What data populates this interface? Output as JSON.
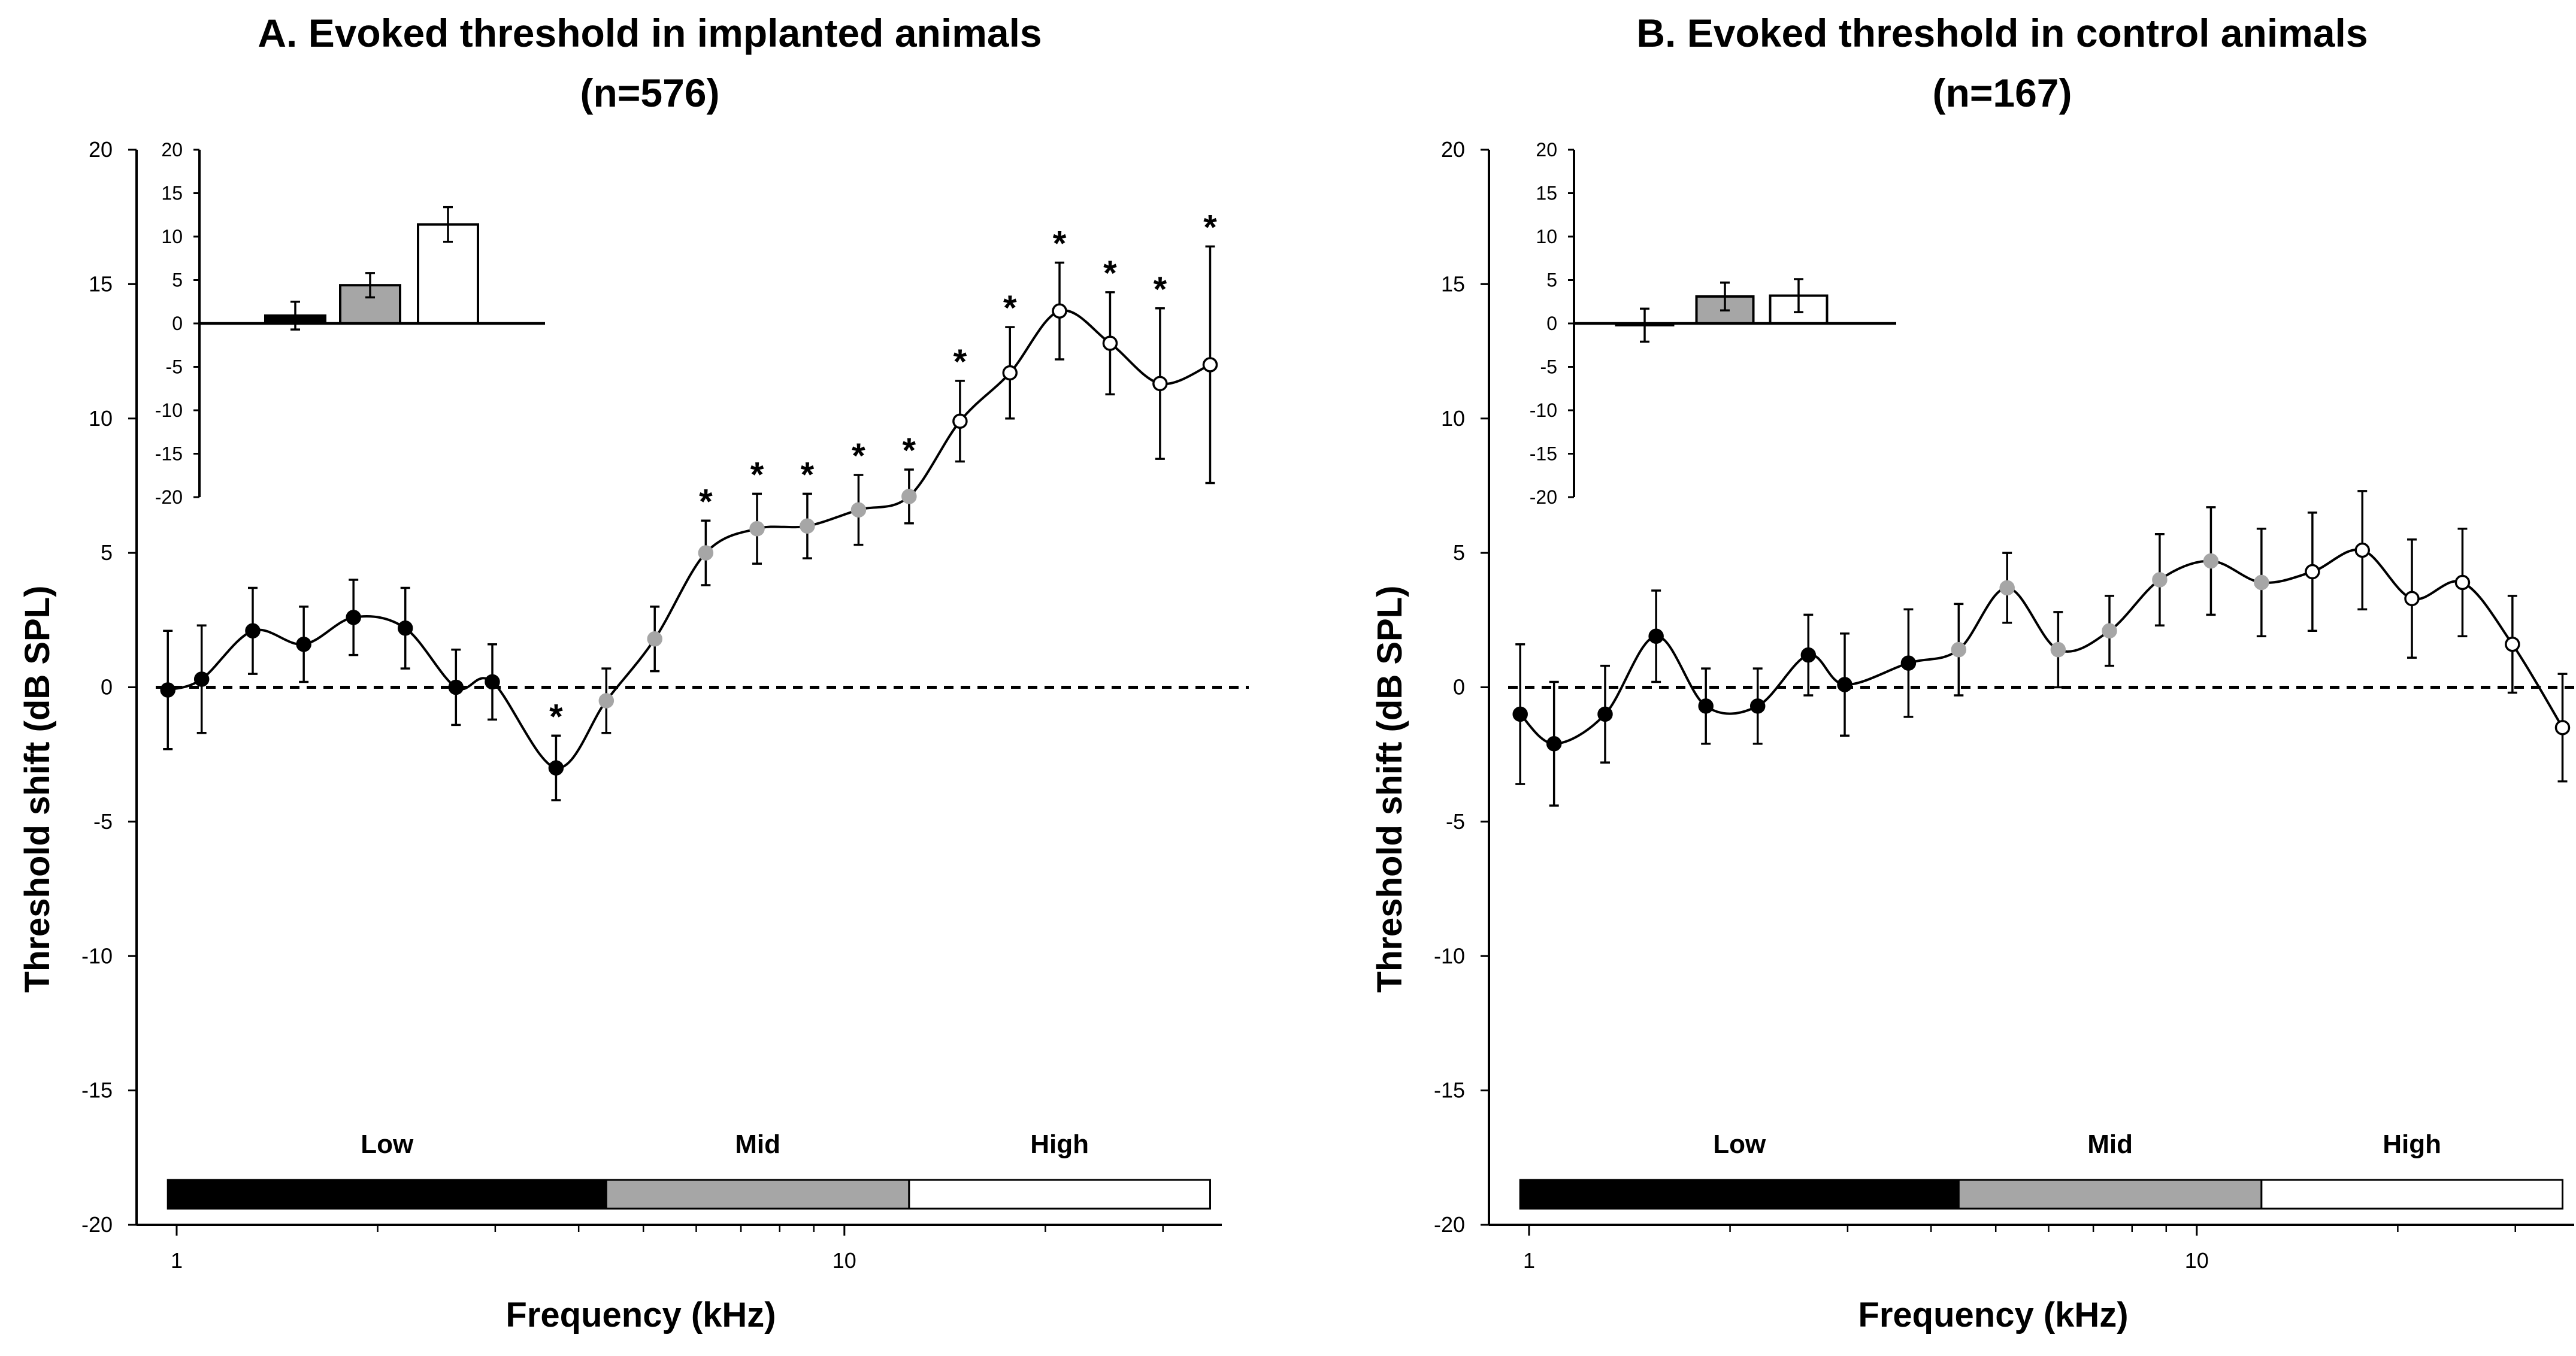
{
  "chart_data": [
    {
      "type": "line",
      "title": "A. Evoked threshold in implanted animals",
      "subtitle": "(n=576)",
      "xlabel": "Frequency (kHz)",
      "ylabel": "Threshold shift (dB SPL)",
      "xscale": "log",
      "xlim": [
        0.94,
        36
      ],
      "ylim": [
        -20,
        20
      ],
      "x_ticks": [
        {
          "value": 1,
          "label": "1"
        },
        {
          "value": 10,
          "label": "10"
        }
      ],
      "y_ticks": [
        {
          "value": 20,
          "label": "20"
        },
        {
          "value": 15,
          "label": "15"
        },
        {
          "value": 10,
          "label": "10"
        },
        {
          "value": 5,
          "label": "5"
        },
        {
          "value": 0,
          "label": "0"
        },
        {
          "value": -5,
          "label": "-5"
        },
        {
          "value": -10,
          "label": "-10"
        },
        {
          "value": -15,
          "label": "-15"
        },
        {
          "value": -20,
          "label": "-20"
        }
      ],
      "reference_line": 0,
      "points": [
        {
          "x": 0.97,
          "y": -0.1,
          "err": 2.2,
          "band": "low",
          "sig": false
        },
        {
          "x": 1.09,
          "y": 0.3,
          "err": 2.0,
          "band": "low",
          "sig": false
        },
        {
          "x": 1.3,
          "y": 2.1,
          "err": 1.6,
          "band": "low",
          "sig": false
        },
        {
          "x": 1.55,
          "y": 1.6,
          "err": 1.4,
          "band": "low",
          "sig": false
        },
        {
          "x": 1.84,
          "y": 2.6,
          "err": 1.4,
          "band": "low",
          "sig": false
        },
        {
          "x": 2.2,
          "y": 2.2,
          "err": 1.5,
          "band": "low",
          "sig": false
        },
        {
          "x": 2.62,
          "y": 0.0,
          "err": 1.4,
          "band": "low",
          "sig": false
        },
        {
          "x": 2.97,
          "y": 0.2,
          "err": 1.4,
          "band": "low",
          "sig": false
        },
        {
          "x": 3.7,
          "y": -3.0,
          "err": 1.2,
          "band": "low",
          "sig": true
        },
        {
          "x": 4.4,
          "y": -0.5,
          "err": 1.2,
          "band": "mid",
          "sig": false
        },
        {
          "x": 5.2,
          "y": 1.8,
          "err": 1.2,
          "band": "mid",
          "sig": false
        },
        {
          "x": 6.2,
          "y": 5.0,
          "err": 1.2,
          "band": "mid",
          "sig": true
        },
        {
          "x": 7.4,
          "y": 5.9,
          "err": 1.3,
          "band": "mid",
          "sig": true
        },
        {
          "x": 8.8,
          "y": 6.0,
          "err": 1.2,
          "band": "mid",
          "sig": true
        },
        {
          "x": 10.5,
          "y": 6.6,
          "err": 1.3,
          "band": "mid",
          "sig": true
        },
        {
          "x": 12.5,
          "y": 7.1,
          "err": 1.0,
          "band": "mid",
          "sig": true
        },
        {
          "x": 14.9,
          "y": 9.9,
          "err": 1.5,
          "band": "high",
          "sig": true
        },
        {
          "x": 17.7,
          "y": 11.7,
          "err": 1.7,
          "band": "high",
          "sig": true
        },
        {
          "x": 21.0,
          "y": 14.0,
          "err": 1.8,
          "band": "high",
          "sig": true
        },
        {
          "x": 25.0,
          "y": 12.8,
          "err": 1.9,
          "band": "high",
          "sig": true
        },
        {
          "x": 29.7,
          "y": 11.3,
          "err": 2.8,
          "band": "high",
          "sig": true
        },
        {
          "x": 35.3,
          "y": 12.0,
          "err": 4.4,
          "band": "high",
          "sig": true
        }
      ],
      "band_bar": [
        {
          "label": "Low",
          "from": 0.97,
          "to": 4.4,
          "color": "#000000"
        },
        {
          "label": "Mid",
          "from": 4.4,
          "to": 12.5,
          "color": "#a6a6a6"
        },
        {
          "label": "High",
          "from": 12.5,
          "to": 35.3,
          "color": "#ffffff"
        }
      ],
      "inset": {
        "type": "bar",
        "categories": [
          "Low",
          "Mid",
          "High"
        ],
        "values": [
          0.9,
          4.4,
          11.4
        ],
        "errors": [
          1.6,
          1.4,
          2.0
        ],
        "colors": [
          "#000000",
          "#a6a6a6",
          "#ffffff"
        ],
        "ylim": [
          -20,
          20
        ],
        "y_ticks": [
          {
            "value": 20,
            "label": "20"
          },
          {
            "value": 15,
            "label": "15"
          },
          {
            "value": 10,
            "label": "10"
          },
          {
            "value": 5,
            "label": "5"
          },
          {
            "value": 0,
            "label": "0"
          },
          {
            "value": -5,
            "label": "-5"
          },
          {
            "value": -10,
            "label": "-10"
          },
          {
            "value": -15,
            "label": "-15"
          },
          {
            "value": -20,
            "label": "-20"
          }
        ]
      }
    },
    {
      "type": "line",
      "title": "B. Evoked threshold in control animals",
      "subtitle": "(n=167)",
      "xlabel": "Frequency (kHz)",
      "ylabel": "Threshold shift (dB SPL)",
      "xscale": "log",
      "xlim": [
        0.94,
        36
      ],
      "ylim": [
        -20,
        20
      ],
      "x_ticks": [
        {
          "value": 1,
          "label": "1"
        },
        {
          "value": 10,
          "label": "10"
        }
      ],
      "y_ticks": [
        {
          "value": 20,
          "label": "20"
        },
        {
          "value": 15,
          "label": "15"
        },
        {
          "value": 10,
          "label": "10"
        },
        {
          "value": 5,
          "label": "5"
        },
        {
          "value": 0,
          "label": "0"
        },
        {
          "value": -5,
          "label": "-5"
        },
        {
          "value": -10,
          "label": "-10"
        },
        {
          "value": -15,
          "label": "-15"
        },
        {
          "value": -20,
          "label": "-20"
        }
      ],
      "reference_line": 0,
      "points": [
        {
          "x": 0.97,
          "y": -1.0,
          "err": 2.6,
          "band": "low",
          "sig": false
        },
        {
          "x": 1.09,
          "y": -2.1,
          "err": 2.3,
          "band": "low",
          "sig": false
        },
        {
          "x": 1.3,
          "y": -1.0,
          "err": 1.8,
          "band": "low",
          "sig": false
        },
        {
          "x": 1.55,
          "y": 1.9,
          "err": 1.7,
          "band": "low",
          "sig": false
        },
        {
          "x": 1.84,
          "y": -0.7,
          "err": 1.4,
          "band": "low",
          "sig": false
        },
        {
          "x": 2.2,
          "y": -0.7,
          "err": 1.4,
          "band": "low",
          "sig": false
        },
        {
          "x": 2.62,
          "y": 1.2,
          "err": 1.5,
          "band": "low",
          "sig": false
        },
        {
          "x": 2.97,
          "y": 0.1,
          "err": 1.9,
          "band": "low",
          "sig": false
        },
        {
          "x": 3.7,
          "y": 0.9,
          "err": 2.0,
          "band": "low",
          "sig": false
        },
        {
          "x": 4.4,
          "y": 1.4,
          "err": 1.7,
          "band": "mid",
          "sig": false
        },
        {
          "x": 5.2,
          "y": 3.7,
          "err": 1.3,
          "band": "mid",
          "sig": false
        },
        {
          "x": 6.2,
          "y": 1.4,
          "err": 1.4,
          "band": "mid",
          "sig": false
        },
        {
          "x": 7.4,
          "y": 2.1,
          "err": 1.3,
          "band": "mid",
          "sig": false
        },
        {
          "x": 8.8,
          "y": 4.0,
          "err": 1.7,
          "band": "mid",
          "sig": false
        },
        {
          "x": 10.5,
          "y": 4.7,
          "err": 2.0,
          "band": "mid",
          "sig": false
        },
        {
          "x": 12.5,
          "y": 3.9,
          "err": 2.0,
          "band": "mid",
          "sig": false
        },
        {
          "x": 14.9,
          "y": 4.3,
          "err": 2.2,
          "band": "high",
          "sig": false
        },
        {
          "x": 17.7,
          "y": 5.1,
          "err": 2.2,
          "band": "high",
          "sig": false
        },
        {
          "x": 21.0,
          "y": 3.3,
          "err": 2.2,
          "band": "high",
          "sig": false
        },
        {
          "x": 25.0,
          "y": 3.9,
          "err": 2.0,
          "band": "high",
          "sig": false
        },
        {
          "x": 29.7,
          "y": 1.6,
          "err": 1.8,
          "band": "high",
          "sig": false
        },
        {
          "x": 35.3,
          "y": -1.5,
          "err": 2.0,
          "band": "high",
          "sig": false
        }
      ],
      "band_bar": [
        {
          "label": "Low",
          "from": 0.97,
          "to": 4.4,
          "color": "#000000"
        },
        {
          "label": "Mid",
          "from": 4.4,
          "to": 12.5,
          "color": "#a6a6a6"
        },
        {
          "label": "High",
          "from": 12.5,
          "to": 35.3,
          "color": "#ffffff"
        }
      ],
      "inset": {
        "type": "bar",
        "categories": [
          "Low",
          "Mid",
          "High"
        ],
        "values": [
          -0.2,
          3.1,
          3.2
        ],
        "errors": [
          1.9,
          1.6,
          1.9
        ],
        "colors": [
          "#000000",
          "#a6a6a6",
          "#ffffff"
        ],
        "ylim": [
          -20,
          20
        ],
        "y_ticks": [
          {
            "value": 20,
            "label": "20"
          },
          {
            "value": 15,
            "label": "15"
          },
          {
            "value": 10,
            "label": "10"
          },
          {
            "value": 5,
            "label": "5"
          },
          {
            "value": 0,
            "label": "0"
          },
          {
            "value": -5,
            "label": "-5"
          },
          {
            "value": -10,
            "label": "-10"
          },
          {
            "value": -15,
            "label": "-15"
          },
          {
            "value": -20,
            "label": "-20"
          }
        ]
      }
    }
  ],
  "colors": {
    "low": "#000000",
    "mid": "#a6a6a6",
    "high": "#ffffff",
    "stroke": "#000000"
  }
}
